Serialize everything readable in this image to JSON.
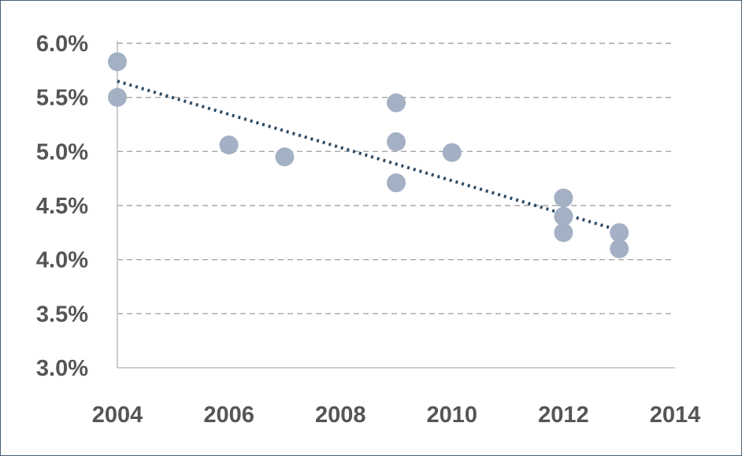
{
  "chart_data": {
    "type": "scatter",
    "title": "",
    "xlabel": "",
    "ylabel": "",
    "xlim": [
      2004,
      2014
    ],
    "ylim": [
      0.03,
      0.06
    ],
    "x_ticks": [
      "2004",
      "2006",
      "2008",
      "2010",
      "2012",
      "2014"
    ],
    "y_ticks": [
      "3.0%",
      "3.5%",
      "4.0%",
      "4.5%",
      "5.0%",
      "5.5%",
      "6.0%"
    ],
    "grid": "horizontal dashed",
    "legend": "none",
    "series": [
      {
        "points": [
          {
            "x": 2004,
            "y": 0.0583
          },
          {
            "x": 2004,
            "y": 0.055
          },
          {
            "x": 2006,
            "y": 0.0506
          },
          {
            "x": 2007,
            "y": 0.0495
          },
          {
            "x": 2009,
            "y": 0.0545
          },
          {
            "x": 2009,
            "y": 0.0509
          },
          {
            "x": 2009,
            "y": 0.0471
          },
          {
            "x": 2010,
            "y": 0.0499
          },
          {
            "x": 2012,
            "y": 0.0457
          },
          {
            "x": 2012,
            "y": 0.044
          },
          {
            "x": 2012,
            "y": 0.0425
          },
          {
            "x": 2013,
            "y": 0.0425
          },
          {
            "x": 2013,
            "y": 0.041
          }
        ]
      }
    ],
    "trendline": {
      "type": "linear",
      "x": [
        2004,
        2013
      ],
      "y": [
        0.0565,
        0.0427
      ]
    },
    "colors": {
      "points": "#a4b0c4",
      "trendline": "#2f4a63",
      "grid": "#a6a6a6",
      "axis": "#bfbfbf",
      "text": "#555555",
      "border": "#4a5f78"
    }
  }
}
